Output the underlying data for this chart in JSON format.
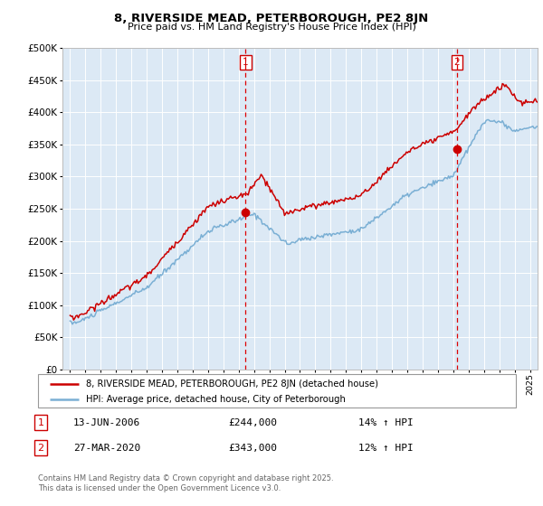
{
  "title": "8, RIVERSIDE MEAD, PETERBOROUGH, PE2 8JN",
  "subtitle": "Price paid vs. HM Land Registry's House Price Index (HPI)",
  "background_color": "#dce9f5",
  "plot_bg_color": "#dce9f5",
  "red_line_color": "#cc0000",
  "blue_line_color": "#7aafd4",
  "marker_color": "#cc0000",
  "vline_color": "#dd0000",
  "grid_color": "#ffffff",
  "fig_bg": "#ffffff",
  "ylim": [
    0,
    500000
  ],
  "yticks": [
    0,
    50000,
    100000,
    150000,
    200000,
    250000,
    300000,
    350000,
    400000,
    450000,
    500000
  ],
  "xlim": [
    1994.5,
    2025.5
  ],
  "year_start": 1995,
  "year_end": 2025,
  "event1_year": 2006.45,
  "event2_year": 2020.23,
  "legend_label1": "8, RIVERSIDE MEAD, PETERBOROUGH, PE2 8JN (detached house)",
  "legend_label2": "HPI: Average price, detached house, City of Peterborough",
  "note1_date": "13-JUN-2006",
  "note1_price": "£244,000",
  "note1_hpi": "14% ↑ HPI",
  "note2_date": "27-MAR-2020",
  "note2_price": "£343,000",
  "note2_hpi": "12% ↑ HPI",
  "copyright": "Contains HM Land Registry data © Crown copyright and database right 2025.\nThis data is licensed under the Open Government Licence v3.0."
}
